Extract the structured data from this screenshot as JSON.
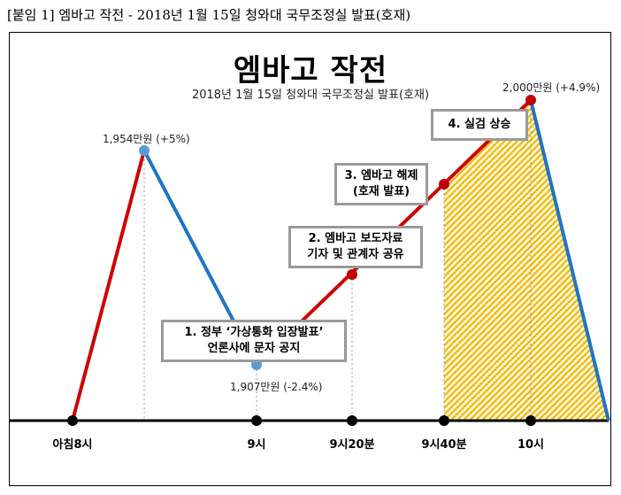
{
  "caption": "[붙임 1] 엠바고 작전 - 2018년 1월 15일 청와대 국무조정실 발표(호재)",
  "title": "엠바고 작전",
  "subtitle": "2018년 1월 15일 청와대 국무조정실 발표(호재)",
  "points": {
    "peak1": "1,954만원 (+5%)",
    "low": "1,907만원 (-2.4%)",
    "peak2": "2,000만원 (+4.9%)"
  },
  "axis": [
    "아침8시",
    "9시",
    "9시20분",
    "9시40분",
    "10시"
  ],
  "events": [
    {
      "line1": "1. 정부 ‘가상통화 입장발표’",
      "line2": "언론사에 문자 공지"
    },
    {
      "line1": "2. 엠바고 보도자료",
      "line2": "기자 및 관계자 공유"
    },
    {
      "line1": "3. 엠바고 해제",
      "line2": "(호재 발표)"
    },
    {
      "line1": "4. 실검 상승"
    }
  ],
  "colors": {
    "up": "#d00000",
    "down": "#1f74c4",
    "hatch": "#f0b400"
  }
}
